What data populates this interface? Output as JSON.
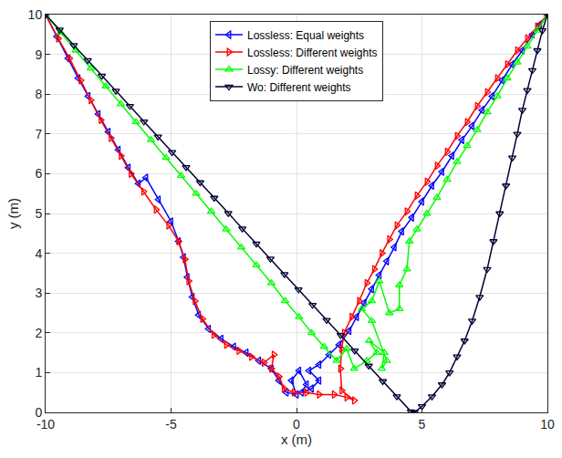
{
  "chart_data": {
    "type": "line",
    "xlabel": "x (m)",
    "ylabel": "y (m)",
    "xlim": [
      -10,
      10
    ],
    "ylim": [
      0,
      10
    ],
    "xticks": [
      -10,
      -5,
      0,
      5,
      10
    ],
    "yticks": [
      0,
      1,
      2,
      3,
      4,
      5,
      6,
      7,
      8,
      9,
      10
    ],
    "grid": true,
    "legend": "top",
    "series": [
      {
        "name": "Lossless: Equal weights",
        "color": "#0000ff",
        "marker": "triangle-left",
        "line_style": "solid",
        "x": [
          -10,
          -9.55,
          -9.1,
          -8.7,
          -8.3,
          -7.9,
          -7.5,
          -7.1,
          -6.7,
          -6.3,
          -6.0,
          -5.5,
          -5.0,
          -4.7,
          -4.5,
          -4.35,
          -4.15,
          -3.9,
          -3.5,
          -3.0,
          -2.5,
          -2.0,
          -1.5,
          -1.0,
          -0.7,
          -0.4,
          0.0,
          -0.2,
          0.1,
          0.4,
          0.2,
          0.6,
          0.9,
          0.5,
          0.9,
          1.3,
          1.7,
          2.1,
          2.4,
          2.7,
          3.0,
          3.3,
          3.6,
          3.9,
          4.2,
          4.6,
          5.0,
          5.4,
          5.8,
          6.2,
          6.6,
          7.0,
          7.4,
          7.8,
          8.2,
          8.6,
          9.0,
          9.4,
          9.7,
          10
        ],
        "values": [
          10,
          9.45,
          8.9,
          8.4,
          7.95,
          7.5,
          7.05,
          6.6,
          6.15,
          5.75,
          5.9,
          5.35,
          4.8,
          4.3,
          3.9,
          3.4,
          2.9,
          2.45,
          2.1,
          1.85,
          1.65,
          1.5,
          1.3,
          1.1,
          0.8,
          0.5,
          0.45,
          0.8,
          1.05,
          0.7,
          0.5,
          0.6,
          0.8,
          1.05,
          1.2,
          1.45,
          1.7,
          2.05,
          2.4,
          2.75,
          3.1,
          3.45,
          3.8,
          4.15,
          4.55,
          4.9,
          5.3,
          5.7,
          6.05,
          6.45,
          6.85,
          7.2,
          7.6,
          7.95,
          8.35,
          8.75,
          9.1,
          9.5,
          9.75,
          10
        ]
      },
      {
        "name": "Lossless: Different weights",
        "color": "#ff0000",
        "marker": "triangle-right",
        "line_style": "solid",
        "x": [
          -10,
          -9.5,
          -9.05,
          -8.6,
          -8.2,
          -7.8,
          -7.4,
          -7.0,
          -6.6,
          -6.1,
          -5.6,
          -5.1,
          -4.7,
          -4.45,
          -4.3,
          -4.05,
          -3.75,
          -3.3,
          -2.8,
          -2.3,
          -1.8,
          -1.3,
          -0.9,
          -1.0,
          -0.7,
          -0.5,
          -0.1,
          0.4,
          0.9,
          1.5,
          2.0,
          2.3,
          1.8,
          1.75,
          1.8,
          1.9,
          2.2,
          2.5,
          2.8,
          3.1,
          3.4,
          3.7,
          4.0,
          4.4,
          4.8,
          5.2,
          5.6,
          6.0,
          6.4,
          6.8,
          7.2,
          7.6,
          8.0,
          8.4,
          8.8,
          9.2,
          9.6,
          10
        ],
        "values": [
          10,
          9.4,
          8.9,
          8.35,
          7.85,
          7.35,
          6.9,
          6.45,
          6.0,
          5.55,
          5.1,
          4.7,
          4.3,
          3.85,
          3.3,
          2.8,
          2.35,
          1.95,
          1.7,
          1.55,
          1.4,
          1.25,
          1.45,
          1.1,
          0.9,
          0.6,
          0.5,
          0.5,
          0.45,
          0.45,
          0.38,
          0.3,
          0.55,
          1.1,
          1.6,
          2.0,
          2.4,
          2.8,
          3.25,
          3.6,
          4.0,
          4.35,
          4.7,
          5.05,
          5.45,
          5.8,
          6.2,
          6.55,
          6.95,
          7.3,
          7.7,
          8.05,
          8.4,
          8.75,
          9.1,
          9.4,
          9.7,
          10
        ]
      },
      {
        "name": "Lossy: Different weights",
        "color": "#00ff00",
        "marker": "triangle-up",
        "line_style": "solid",
        "x": [
          -10,
          -9.4,
          -8.8,
          -8.2,
          -7.6,
          -7.0,
          -6.4,
          -5.8,
          -5.2,
          -4.6,
          -4.0,
          -3.4,
          -2.8,
          -2.2,
          -1.6,
          -1.0,
          -0.45,
          0.1,
          0.6,
          1.1,
          1.6,
          2.0,
          2.3,
          2.8,
          3.2,
          2.9,
          3.5,
          3.4,
          3.6,
          3.0,
          2.6,
          3.0,
          3.3,
          3.7,
          4.1,
          4.1,
          4.4,
          4.5,
          4.8,
          5.2,
          5.6,
          6.0,
          6.4,
          6.8,
          7.2,
          7.6,
          8.0,
          8.4,
          8.8,
          9.2,
          9.6,
          10
        ],
        "values": [
          10,
          9.55,
          9.1,
          8.65,
          8.2,
          7.75,
          7.3,
          6.85,
          6.4,
          5.95,
          5.5,
          5.05,
          4.6,
          4.15,
          3.7,
          3.25,
          2.8,
          2.4,
          2.0,
          1.65,
          1.3,
          1.6,
          1.1,
          1.3,
          1.5,
          1.8,
          1.5,
          1.1,
          1.3,
          2.3,
          2.6,
          2.8,
          3.3,
          2.5,
          2.6,
          3.2,
          3.6,
          4.3,
          4.6,
          5.0,
          5.4,
          5.85,
          6.3,
          6.7,
          7.1,
          7.55,
          7.95,
          8.4,
          8.8,
          9.2,
          9.6,
          10
        ]
      },
      {
        "name": "Wo: Different weights",
        "color": "#000033",
        "marker": "triangle-down",
        "line_style": "solid",
        "x": [
          -10,
          -9.44,
          -8.88,
          -8.32,
          -7.76,
          -7.2,
          -6.64,
          -6.08,
          -5.52,
          -4.96,
          -4.4,
          -3.84,
          -3.28,
          -2.72,
          -2.16,
          -1.6,
          -1.04,
          -0.48,
          0.08,
          0.64,
          1.2,
          1.76,
          2.32,
          2.88,
          3.44,
          4.0,
          4.56,
          4.7,
          5.0,
          5.4,
          5.8,
          6.1,
          6.4,
          6.7,
          7.0,
          7.3,
          7.6,
          7.85,
          8.1,
          8.35,
          8.6,
          8.8,
          9.0,
          9.2,
          9.4,
          9.6,
          9.8,
          10
        ],
        "values": [
          10,
          9.62,
          9.23,
          8.85,
          8.46,
          8.08,
          7.7,
          7.31,
          6.93,
          6.54,
          6.16,
          5.78,
          5.39,
          5.01,
          4.62,
          4.24,
          3.86,
          3.47,
          3.09,
          2.7,
          2.32,
          1.94,
          1.55,
          1.17,
          0.78,
          0.4,
          0.02,
          0,
          0.15,
          0.4,
          0.7,
          1.0,
          1.4,
          1.8,
          2.3,
          2.9,
          3.6,
          4.3,
          5.0,
          5.7,
          6.4,
          7.0,
          7.6,
          8.1,
          8.6,
          9.1,
          9.6,
          10
        ]
      }
    ]
  }
}
